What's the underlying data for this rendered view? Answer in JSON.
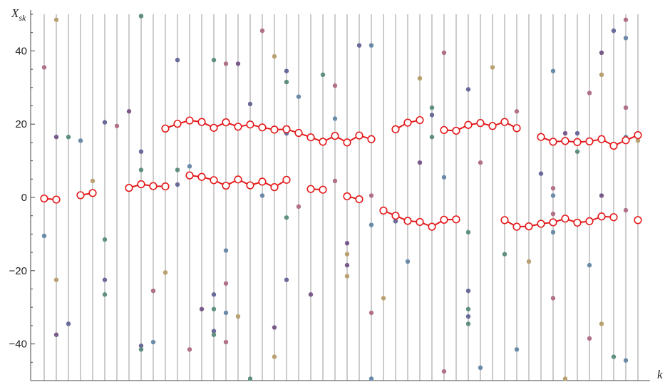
{
  "chart_data": {
    "type": "scatter",
    "xlabel": "k",
    "ylabel": "X_sk",
    "ylabel_main": "X",
    "ylabel_sub": "sk",
    "ylim": [
      -50,
      50
    ],
    "yticks": [
      -40,
      -20,
      0,
      20,
      40
    ],
    "ytick_labels": [
      "−40",
      "−20",
      "0",
      "20",
      "40"
    ],
    "k_range": [
      1,
      50
    ],
    "grid": "vertical lines at each k",
    "scatter_colors": [
      "#6a6a9a",
      "#b0708a",
      "#b8a070",
      "#5f8f7f",
      "#6a8aa8",
      "#7a5a8a"
    ],
    "line_color": "#e31a1c",
    "scatter": [
      [
        1,
        35.5
      ],
      [
        1,
        -10.5
      ],
      [
        2,
        48.5
      ],
      [
        2,
        16.5
      ],
      [
        2,
        -22.5
      ],
      [
        2,
        -37.5
      ],
      [
        3,
        16.5
      ],
      [
        3,
        -34.5
      ],
      [
        4,
        15.5
      ],
      [
        5,
        4.5
      ],
      [
        6,
        20.5
      ],
      [
        6,
        -11.5
      ],
      [
        6,
        -22.5
      ],
      [
        6,
        -26.5
      ],
      [
        7,
        19.5
      ],
      [
        8,
        23.5
      ],
      [
        9,
        49.5
      ],
      [
        9,
        12.5
      ],
      [
        9,
        7.5
      ],
      [
        9,
        -40.5
      ],
      [
        9,
        -41.5
      ],
      [
        10,
        -25.5
      ],
      [
        10,
        -39.5
      ],
      [
        11,
        -20.5
      ],
      [
        12,
        37.5
      ],
      [
        12,
        7.5
      ],
      [
        12,
        3.5
      ],
      [
        13,
        8.5
      ],
      [
        13,
        -41.5
      ],
      [
        14,
        -30.5
      ],
      [
        15,
        37.5
      ],
      [
        15,
        -26.5
      ],
      [
        15,
        -30.5
      ],
      [
        15,
        -36.5
      ],
      [
        15,
        -37.5
      ],
      [
        16,
        36.5
      ],
      [
        16,
        -14.5
      ],
      [
        16,
        -23.5
      ],
      [
        16,
        -31.5
      ],
      [
        16,
        -39.5
      ],
      [
        17,
        36.5
      ],
      [
        17,
        -32.5
      ],
      [
        18,
        25.5
      ],
      [
        18,
        -49.5
      ],
      [
        19,
        45.5
      ],
      [
        19,
        0.5
      ],
      [
        20,
        38.5
      ],
      [
        20,
        -35.5
      ],
      [
        20,
        -43.5
      ],
      [
        21,
        34.5
      ],
      [
        21,
        31.5
      ],
      [
        21,
        17.5
      ],
      [
        21,
        -5.5
      ],
      [
        21,
        -22.5
      ],
      [
        22,
        27.5
      ],
      [
        22,
        -2.5
      ],
      [
        23,
        -26.5
      ],
      [
        24,
        33.5
      ],
      [
        25,
        30.5
      ],
      [
        25,
        21.5
      ],
      [
        25,
        4.5
      ],
      [
        26,
        -12.5
      ],
      [
        26,
        -15.5
      ],
      [
        26,
        -18.5
      ],
      [
        26,
        -21.5
      ],
      [
        27,
        41.5
      ],
      [
        28,
        41.5
      ],
      [
        28,
        0.5
      ],
      [
        28,
        -7.5
      ],
      [
        28,
        -31.5
      ],
      [
        28,
        -49.5
      ],
      [
        29,
        -27.5
      ],
      [
        30,
        -6.5
      ],
      [
        31,
        -17.5
      ],
      [
        32,
        32.5
      ],
      [
        32,
        9.5
      ],
      [
        33,
        24.5
      ],
      [
        33,
        22.5
      ],
      [
        33,
        16.5
      ],
      [
        34,
        39.5
      ],
      [
        34,
        5.5
      ],
      [
        34,
        -47.5
      ],
      [
        36,
        29.5
      ],
      [
        36,
        -9.5
      ],
      [
        36,
        -25.5
      ],
      [
        36,
        -30.5
      ],
      [
        36,
        -32.5
      ],
      [
        36,
        -34.5
      ],
      [
        37,
        9.5
      ],
      [
        37,
        -46.5
      ],
      [
        38,
        35.5
      ],
      [
        39,
        20.5
      ],
      [
        39,
        -15.5
      ],
      [
        40,
        23.5
      ],
      [
        40,
        -41.5
      ],
      [
        41,
        -17.5
      ],
      [
        42,
        6.5
      ],
      [
        43,
        34.5
      ],
      [
        43,
        2.5
      ],
      [
        43,
        0.5
      ],
      [
        43,
        -4.5
      ],
      [
        43,
        -9.5
      ],
      [
        43,
        -27.5
      ],
      [
        44,
        17.5
      ],
      [
        44,
        -49.5
      ],
      [
        45,
        17.5
      ],
      [
        45,
        12.5
      ],
      [
        46,
        28.5
      ],
      [
        46,
        -18.5
      ],
      [
        46,
        -38.5
      ],
      [
        47,
        39.5
      ],
      [
        47,
        33.5
      ],
      [
        47,
        0.5
      ],
      [
        47,
        -34.5
      ],
      [
        48,
        45.5
      ],
      [
        48,
        -43.5
      ],
      [
        49,
        48.5
      ],
      [
        49,
        43.5
      ],
      [
        49,
        24.5
      ],
      [
        49,
        16.5
      ],
      [
        49,
        -3.5
      ],
      [
        49,
        -44.5
      ],
      [
        50,
        15.5
      ]
    ],
    "segments": [
      [
        [
          1,
          -0.3
        ],
        [
          2,
          -0.6
        ]
      ],
      [
        [
          4,
          0.6
        ],
        [
          5,
          1.2
        ]
      ],
      [
        [
          8,
          2.6
        ],
        [
          9,
          3.6
        ],
        [
          10,
          3.1
        ],
        [
          11,
          3.0
        ]
      ],
      [
        [
          11,
          18.8
        ],
        [
          12,
          20.1
        ],
        [
          13,
          21.0
        ],
        [
          14,
          20.6
        ],
        [
          15,
          19.0
        ],
        [
          16,
          20.5
        ],
        [
          17,
          19.3
        ],
        [
          18,
          19.9
        ],
        [
          19,
          19.1
        ],
        [
          20,
          18.5
        ],
        [
          21,
          18.6
        ],
        [
          22,
          17.6
        ],
        [
          23,
          16.4
        ],
        [
          24,
          15.2
        ],
        [
          25,
          16.8
        ],
        [
          26,
          15.0
        ],
        [
          27,
          16.9
        ],
        [
          28,
          15.9
        ]
      ],
      [
        [
          13,
          6.0
        ],
        [
          14,
          5.6
        ],
        [
          15,
          4.7
        ],
        [
          16,
          3.2
        ],
        [
          17,
          4.9
        ],
        [
          18,
          3.3
        ],
        [
          19,
          4.3
        ],
        [
          20,
          2.8
        ],
        [
          21,
          4.8
        ]
      ],
      [
        [
          23,
          2.3
        ],
        [
          24,
          2.1
        ]
      ],
      [
        [
          26,
          0.3
        ],
        [
          27,
          -0.5
        ]
      ],
      [
        [
          29,
          -3.6
        ],
        [
          30,
          -5.0
        ],
        [
          31,
          -6.4
        ],
        [
          32,
          -6.7
        ],
        [
          33,
          -8.0
        ],
        [
          34,
          -6.1
        ],
        [
          35,
          -6.0
        ]
      ],
      [
        [
          30,
          18.6
        ],
        [
          31,
          20.4
        ],
        [
          32,
          21.1
        ]
      ],
      [
        [
          34,
          18.4
        ],
        [
          35,
          18.2
        ],
        [
          36,
          19.8
        ],
        [
          37,
          20.3
        ],
        [
          38,
          19.5
        ],
        [
          39,
          20.6
        ],
        [
          40,
          18.9
        ]
      ],
      [
        [
          39,
          -6.2
        ],
        [
          40,
          -8.0
        ],
        [
          41,
          -7.9
        ],
        [
          42,
          -7.2
        ],
        [
          43,
          -6.8
        ],
        [
          44,
          -5.8
        ],
        [
          45,
          -6.9
        ],
        [
          46,
          -6.5
        ],
        [
          47,
          -5.2
        ],
        [
          48,
          -5.4
        ]
      ],
      [
        [
          42,
          16.5
        ],
        [
          43,
          15.2
        ],
        [
          44,
          15.4
        ],
        [
          45,
          15.1
        ],
        [
          46,
          15.3
        ],
        [
          47,
          15.9
        ],
        [
          48,
          14.1
        ],
        [
          49,
          15.6
        ],
        [
          50,
          17.0
        ]
      ],
      [
        [
          50,
          -6.2
        ]
      ]
    ]
  }
}
